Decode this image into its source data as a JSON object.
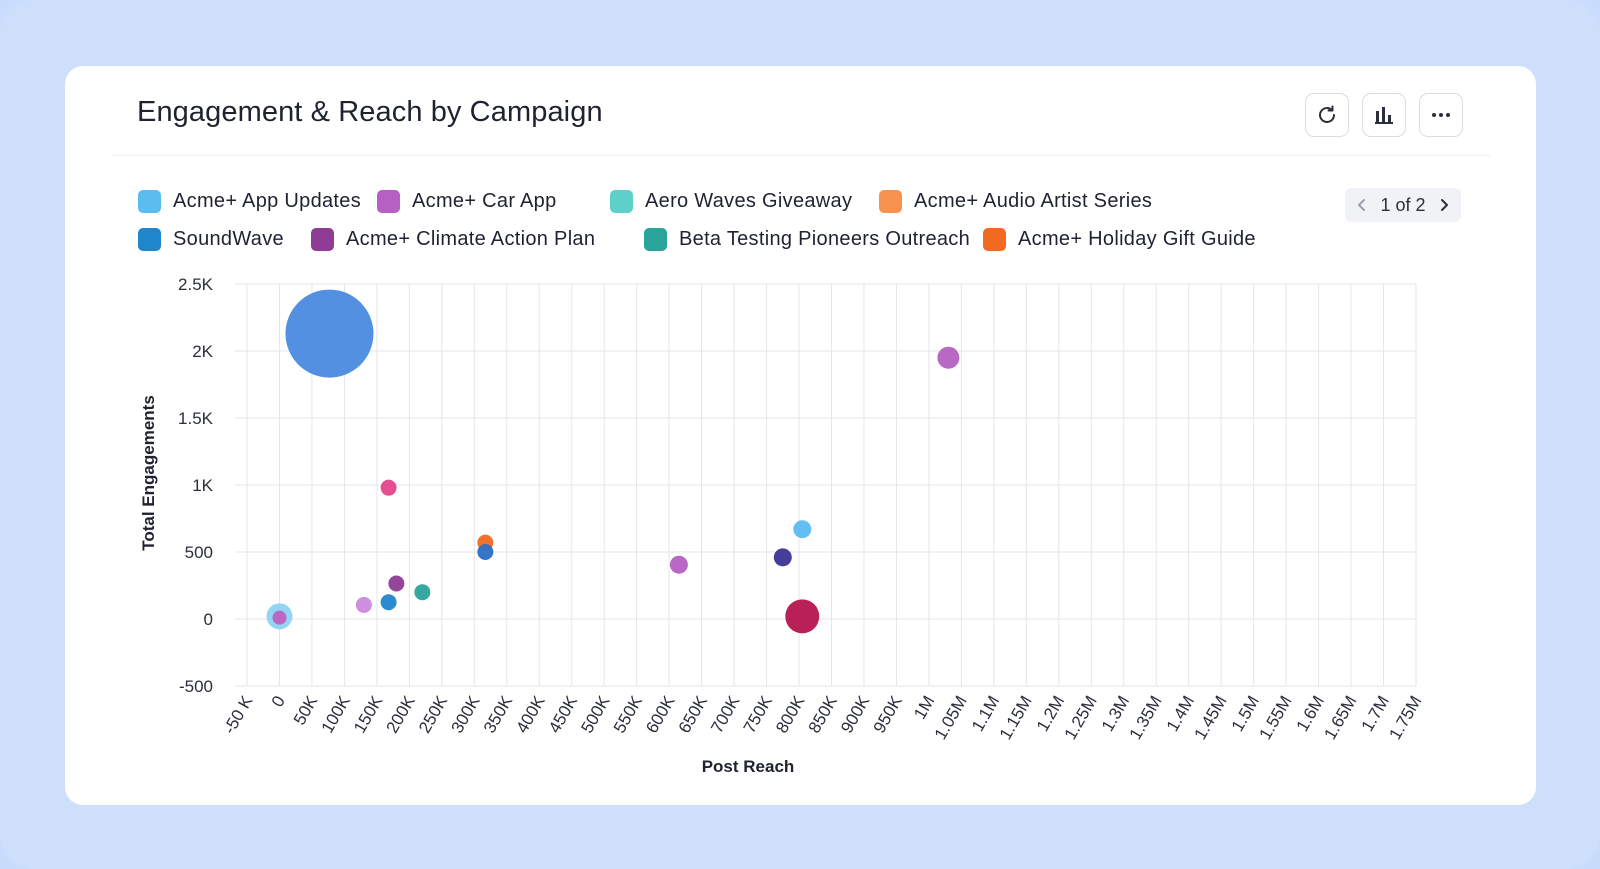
{
  "card": {
    "title": "Engagement & Reach by Campaign",
    "actions": [
      {
        "name": "refresh-button",
        "icon": "refresh-icon"
      },
      {
        "name": "chart-type-button",
        "icon": "bar-chart-icon"
      },
      {
        "name": "more-options-button",
        "icon": "more-horizontal-icon"
      }
    ]
  },
  "legend": {
    "pager": "1 of 2",
    "items": [
      {
        "label": "Acme+ App Updates",
        "color": "#5bbcf0"
      },
      {
        "label": "Acme+ Car App",
        "color": "#b560c2"
      },
      {
        "label": "Aero Waves Giveaway",
        "color": "#5fcfc9"
      },
      {
        "label": "Acme+ Audio Artist Series",
        "color": "#f7934f"
      },
      {
        "label": "SoundWave",
        "color": "#1f86cc"
      },
      {
        "label": "Acme+ Climate Action Plan",
        "color": "#8e3c96"
      },
      {
        "label": "Beta Testing Pioneers Outreach",
        "color": "#2aa39a"
      },
      {
        "label": "Acme+ Holiday Gift Guide",
        "color": "#f06a22"
      }
    ]
  },
  "chart_data": {
    "type": "scatter",
    "title": "Engagement & Reach by Campaign",
    "xlabel": "Post Reach",
    "ylabel": "Total Engagements",
    "xlim": [
      -50000,
      1750000
    ],
    "ylim": [
      -500,
      2500
    ],
    "grid": true,
    "legend_position": "top",
    "x_ticks": [
      "-50 K",
      "0",
      "50K",
      "100K",
      "150K",
      "200K",
      "250K",
      "300K",
      "350K",
      "400K",
      "450K",
      "500K",
      "550K",
      "600K",
      "650K",
      "700K",
      "750K",
      "800K",
      "850K",
      "900K",
      "950K",
      "1M",
      "1.05M",
      "1.1M",
      "1.15M",
      "1.2M",
      "1.25M",
      "1.3M",
      "1.35M",
      "1.4M",
      "1.45M",
      "1.5M",
      "1.55M",
      "1.6M",
      "1.65M",
      "1.7M",
      "1.75M"
    ],
    "y_ticks": [
      "-500",
      "0",
      "500",
      "1K",
      "1.5K",
      "2K",
      "2.5K"
    ],
    "points": [
      {
        "x": 0,
        "y": 20,
        "size": 13,
        "color": "#8fd3f3"
      },
      {
        "x": 77000,
        "y": 2130,
        "size": 44,
        "color": "#4a8ae0"
      },
      {
        "x": 0,
        "y": 10,
        "size": 7,
        "color": "#c060c0"
      },
      {
        "x": 130000,
        "y": 105,
        "size": 8,
        "color": "#cc88dd"
      },
      {
        "x": 168000,
        "y": 980,
        "size": 8,
        "color": "#e2468b"
      },
      {
        "x": 168000,
        "y": 125,
        "size": 8,
        "color": "#1f86cc"
      },
      {
        "x": 180000,
        "y": 265,
        "size": 8,
        "color": "#8e3c96"
      },
      {
        "x": 220000,
        "y": 200,
        "size": 8,
        "color": "#2aa39a"
      },
      {
        "x": 317000,
        "y": 570,
        "size": 8,
        "color": "#f06a22"
      },
      {
        "x": 317000,
        "y": 500,
        "size": 8,
        "color": "#2b6fc4"
      },
      {
        "x": 615000,
        "y": 405,
        "size": 9,
        "color": "#b560c2"
      },
      {
        "x": 775000,
        "y": 460,
        "size": 9,
        "color": "#3d3496"
      },
      {
        "x": 805000,
        "y": 670,
        "size": 9,
        "color": "#5bbcf0"
      },
      {
        "x": 805000,
        "y": 20,
        "size": 17,
        "color": "#b5154d"
      },
      {
        "x": 1030000,
        "y": 1950,
        "size": 11,
        "color": "#b560c2"
      }
    ]
  }
}
